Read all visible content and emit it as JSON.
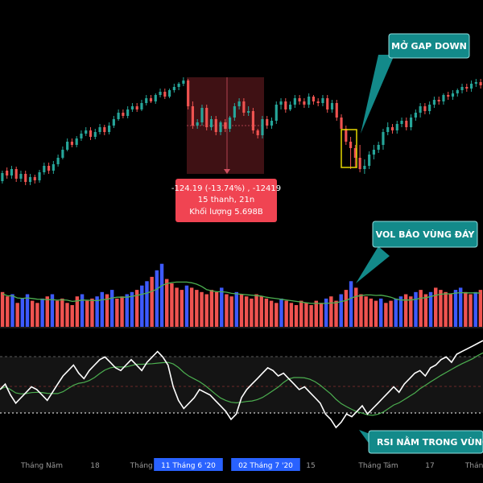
{
  "colors": {
    "bull": "#26a69a",
    "bear": "#ef5350",
    "vol_bull": "#3d5afe",
    "vol_bear": "#ef5350",
    "vol_ma": "#4caf50",
    "rsi": "#ffffff",
    "rsi_ma": "#4caf50",
    "callout": "#138a8a",
    "gap_box": "#e6d800",
    "tooltip_bg": "#f04452",
    "axis_hl": "#2962ff"
  },
  "callouts": {
    "gap": "MỞ GAP DOWN",
    "vol": "VOL BÁO VÙNG ĐÁY",
    "rsi": "RSI NẰM TRONG VÙNG"
  },
  "tooltip": {
    "line1": "-124.19 (-13.74%) , -12419",
    "line2": "15 thanh, 21n",
    "line3": "Khối lượng 5.698B"
  },
  "x_axis": {
    "labels": [
      {
        "text": "Tháng Năm",
        "highlight": false
      },
      {
        "text": "18",
        "highlight": false
      },
      {
        "text": "Tháng 6",
        "highlight": false
      },
      {
        "text": "11 Tháng 6 '20",
        "highlight": true
      },
      {
        "text": "02 Tháng 7 '20",
        "highlight": true
      },
      {
        "text": "15",
        "highlight": false
      },
      {
        "text": "Tháng Tám",
        "highlight": false
      },
      {
        "text": "17",
        "highlight": false
      },
      {
        "text": "Tháng",
        "highlight": false
      }
    ]
  },
  "chart_data": {
    "type": "candlestick",
    "title": "",
    "candles": [
      [
        225,
        215,
        228,
        212
      ],
      [
        212,
        218,
        222,
        208
      ],
      [
        218,
        210,
        222,
        206
      ],
      [
        210,
        222,
        226,
        207
      ],
      [
        222,
        216,
        226,
        212
      ],
      [
        216,
        226,
        230,
        212
      ],
      [
        226,
        220,
        230,
        216
      ],
      [
        220,
        224,
        228,
        217
      ],
      [
        224,
        214,
        227,
        211
      ],
      [
        214,
        206,
        217,
        202
      ],
      [
        206,
        212,
        216,
        202
      ],
      [
        212,
        204,
        216,
        200
      ],
      [
        204,
        196,
        207,
        192
      ],
      [
        196,
        186,
        198,
        182
      ],
      [
        186,
        176,
        188,
        172
      ],
      [
        176,
        180,
        183,
        172
      ],
      [
        180,
        172,
        183,
        169
      ],
      [
        172,
        166,
        175,
        162
      ],
      [
        166,
        162,
        169,
        158
      ],
      [
        162,
        170,
        174,
        158
      ],
      [
        170,
        164,
        173,
        160
      ],
      [
        164,
        158,
        167,
        154
      ],
      [
        158,
        164,
        168,
        155
      ],
      [
        164,
        156,
        167,
        152
      ],
      [
        156,
        148,
        159,
        144
      ],
      [
        148,
        140,
        150,
        136
      ],
      [
        140,
        144,
        147,
        136
      ],
      [
        144,
        136,
        147,
        132
      ],
      [
        136,
        132,
        139,
        128
      ],
      [
        132,
        136,
        139,
        128
      ],
      [
        136,
        128,
        138,
        124
      ],
      [
        128,
        122,
        131,
        118
      ],
      [
        122,
        126,
        128,
        118
      ],
      [
        126,
        118,
        129,
        116
      ],
      [
        118,
        114,
        121,
        110
      ],
      [
        114,
        120,
        123,
        110
      ],
      [
        120,
        112,
        122,
        110
      ],
      [
        112,
        108,
        115,
        104
      ],
      [
        108,
        104,
        112,
        102
      ],
      [
        104,
        100,
        107,
        96
      ],
      [
        100,
        132,
        136,
        98
      ],
      [
        132,
        156,
        160,
        126
      ],
      [
        156,
        152,
        160,
        148
      ],
      [
        152,
        134,
        156,
        130
      ],
      [
        134,
        158,
        162,
        130
      ],
      [
        158,
        148,
        162,
        144
      ],
      [
        148,
        164,
        168,
        144
      ],
      [
        164,
        152,
        168,
        150
      ],
      [
        152,
        160,
        164,
        148
      ],
      [
        160,
        146,
        164,
        144
      ],
      [
        146,
        132,
        150,
        128
      ],
      [
        132,
        126,
        136,
        122
      ],
      [
        126,
        140,
        144,
        122
      ],
      [
        140,
        138,
        144,
        132
      ],
      [
        138,
        162,
        166,
        134
      ],
      [
        162,
        168,
        172,
        160
      ],
      [
        168,
        148,
        172,
        144
      ],
      [
        148,
        156,
        160,
        144
      ],
      [
        156,
        150,
        160,
        146
      ],
      [
        150,
        130,
        154,
        126
      ],
      [
        130,
        126,
        136,
        122
      ],
      [
        126,
        136,
        140,
        122
      ],
      [
        136,
        130,
        138,
        126
      ],
      [
        130,
        122,
        134,
        118
      ],
      [
        122,
        126,
        130,
        118
      ],
      [
        126,
        130,
        134,
        122
      ],
      [
        130,
        120,
        134,
        116
      ],
      [
        120,
        126,
        130,
        118
      ],
      [
        126,
        128,
        132,
        122
      ],
      [
        128,
        122,
        132,
        118
      ],
      [
        122,
        136,
        140,
        118
      ],
      [
        136,
        128,
        140,
        124
      ],
      [
        128,
        146,
        150,
        124
      ],
      [
        146,
        160,
        168,
        142
      ],
      [
        160,
        176,
        180,
        156
      ],
      [
        176,
        184,
        210,
        170
      ],
      [
        184,
        196,
        208,
        180
      ],
      [
        196,
        210,
        214,
        180
      ],
      [
        210,
        206,
        216,
        198
      ],
      [
        206,
        192,
        210,
        188
      ],
      [
        192,
        186,
        198,
        180
      ],
      [
        186,
        180,
        190,
        176
      ],
      [
        180,
        164,
        186,
        160
      ],
      [
        164,
        158,
        168,
        152
      ],
      [
        158,
        162,
        166,
        154
      ],
      [
        162,
        154,
        166,
        150
      ],
      [
        154,
        150,
        158,
        146
      ],
      [
        150,
        158,
        162,
        146
      ],
      [
        158,
        146,
        162,
        142
      ],
      [
        146,
        140,
        150,
        136
      ],
      [
        140,
        132,
        146,
        128
      ],
      [
        132,
        138,
        142,
        128
      ],
      [
        138,
        130,
        142,
        126
      ],
      [
        130,
        124,
        134,
        120
      ],
      [
        124,
        126,
        130,
        120
      ],
      [
        126,
        118,
        130,
        116
      ],
      [
        118,
        120,
        124,
        114
      ],
      [
        120,
        116,
        124,
        112
      ],
      [
        116,
        112,
        120,
        110
      ],
      [
        112,
        108,
        116,
        104
      ],
      [
        108,
        110,
        114,
        104
      ],
      [
        110,
        104,
        114,
        100
      ],
      [
        104,
        102,
        108,
        98
      ],
      [
        102,
        106,
        110,
        98
      ]
    ],
    "ohlc_order": [
      "open",
      "close",
      "high",
      "low"
    ],
    "volume": [
      3.2,
      2.8,
      3.0,
      2.2,
      2.6,
      3.0,
      2.4,
      2.2,
      2.6,
      2.8,
      3.0,
      2.4,
      2.6,
      2.2,
      2.0,
      2.8,
      3.0,
      2.4,
      2.6,
      2.8,
      3.2,
      3.0,
      3.4,
      2.6,
      2.8,
      3.0,
      3.2,
      3.4,
      3.8,
      4.2,
      4.6,
      5.2,
      5.8,
      4.4,
      4.0,
      3.6,
      3.4,
      3.8,
      3.6,
      3.4,
      3.2,
      3.0,
      3.4,
      3.2,
      3.6,
      3.0,
      2.8,
      3.2,
      3.0,
      2.8,
      2.6,
      3.0,
      2.8,
      2.6,
      2.4,
      2.2,
      2.6,
      2.4,
      2.2,
      2.0,
      2.4,
      2.2,
      2.0,
      2.4,
      2.2,
      2.6,
      2.8,
      2.4,
      3.0,
      3.4,
      4.2,
      3.6,
      3.0,
      2.8,
      2.6,
      2.4,
      2.6,
      2.2,
      2.4,
      2.6,
      2.8,
      3.0,
      2.8,
      3.2,
      3.4,
      3.0,
      3.2,
      3.6,
      3.4,
      3.2,
      3.0,
      3.4,
      3.6,
      3.2,
      3.0,
      3.2,
      3.4
    ],
    "rsi": [
      48,
      52,
      44,
      38,
      42,
      46,
      50,
      48,
      44,
      40,
      46,
      52,
      58,
      62,
      66,
      60,
      56,
      62,
      66,
      70,
      72,
      68,
      64,
      62,
      66,
      70,
      66,
      62,
      68,
      72,
      76,
      72,
      66,
      50,
      40,
      34,
      38,
      42,
      48,
      46,
      44,
      40,
      36,
      32,
      26,
      30,
      42,
      48,
      52,
      56,
      60,
      64,
      62,
      58,
      60,
      56,
      52,
      48,
      50,
      46,
      42,
      38,
      30,
      26,
      20,
      24,
      30,
      28,
      32,
      36,
      30,
      34,
      38,
      42,
      46,
      50,
      46,
      52,
      56,
      60,
      62,
      58,
      64,
      66,
      70,
      72,
      68,
      74,
      76,
      78,
      80,
      82,
      84
    ],
    "rsi_levels": [
      70,
      50,
      30
    ],
    "ylim_rsi": [
      10,
      90
    ]
  }
}
